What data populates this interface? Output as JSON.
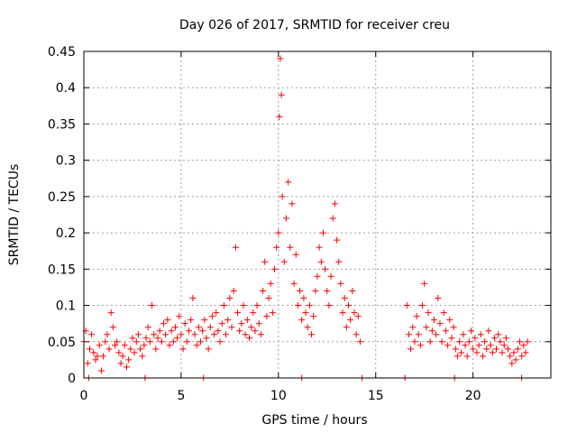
{
  "chart_data": {
    "type": "scatter",
    "title": "Day 026 of 2017, SRMTID for receiver creu",
    "xlabel": "GPS time / hours",
    "ylabel": "SRMTID / TECUs",
    "xlim": [
      0,
      24
    ],
    "ylim": [
      0,
      0.45
    ],
    "xticks": [
      0,
      5,
      10,
      15,
      20
    ],
    "xtick_labels": [
      "0",
      "5",
      "10",
      "15",
      "20"
    ],
    "yticks": [
      0,
      0.05,
      0.1,
      0.15,
      0.2,
      0.25,
      0.3,
      0.35,
      0.4,
      0.45
    ],
    "ytick_labels": [
      "0",
      "0.05",
      "0.1",
      "0.15",
      "0.2",
      "0.25",
      "0.3",
      "0.35",
      "0.4",
      "0.45"
    ],
    "grid": true,
    "marker": "+",
    "marker_color": "#ff0000",
    "series": [
      {
        "name": "SRMTID",
        "points": [
          [
            0.0,
            0.05
          ],
          [
            0.1,
            0.065
          ],
          [
            0.2,
            0.02
          ],
          [
            0.3,
            0.04
          ],
          [
            0.4,
            0.06
          ],
          [
            0.5,
            0.035
          ],
          [
            0.6,
            0.025
          ],
          [
            0.7,
            0.03
          ],
          [
            0.8,
            0.045
          ],
          [
            0.9,
            0.01
          ],
          [
            1.0,
            0.03
          ],
          [
            1.1,
            0.05
          ],
          [
            1.2,
            0.06
          ],
          [
            1.3,
            0.04
          ],
          [
            1.4,
            0.09
          ],
          [
            1.5,
            0.07
          ],
          [
            1.6,
            0.045
          ],
          [
            1.7,
            0.05
          ],
          [
            1.8,
            0.035
          ],
          [
            1.9,
            0.02
          ],
          [
            2.0,
            0.03
          ],
          [
            2.1,
            0.045
          ],
          [
            2.2,
            0.015
          ],
          [
            2.3,
            0.025
          ],
          [
            2.4,
            0.04
          ],
          [
            2.5,
            0.055
          ],
          [
            2.6,
            0.035
          ],
          [
            2.7,
            0.05
          ],
          [
            2.8,
            0.06
          ],
          [
            2.9,
            0.04
          ],
          [
            3.0,
            0.03
          ],
          [
            3.1,
            0.045
          ],
          [
            3.2,
            0.055
          ],
          [
            3.3,
            0.07
          ],
          [
            3.4,
            0.05
          ],
          [
            3.5,
            0.1
          ],
          [
            3.6,
            0.06
          ],
          [
            3.7,
            0.04
          ],
          [
            3.8,
            0.055
          ],
          [
            3.9,
            0.065
          ],
          [
            4.0,
            0.05
          ],
          [
            4.1,
            0.075
          ],
          [
            4.2,
            0.06
          ],
          [
            4.3,
            0.08
          ],
          [
            4.4,
            0.045
          ],
          [
            4.5,
            0.065
          ],
          [
            4.6,
            0.05
          ],
          [
            4.7,
            0.07
          ],
          [
            4.8,
            0.055
          ],
          [
            4.9,
            0.085
          ],
          [
            5.0,
            0.06
          ],
          [
            5.1,
            0.04
          ],
          [
            5.2,
            0.075
          ],
          [
            5.3,
            0.05
          ],
          [
            5.4,
            0.065
          ],
          [
            5.5,
            0.08
          ],
          [
            5.6,
            0.11
          ],
          [
            5.7,
            0.06
          ],
          [
            5.8,
            0.045
          ],
          [
            5.9,
            0.07
          ],
          [
            6.0,
            0.05
          ],
          [
            6.1,
            0.065
          ],
          [
            6.2,
            0.08
          ],
          [
            6.3,
            0.055
          ],
          [
            6.4,
            0.04
          ],
          [
            6.5,
            0.07
          ],
          [
            6.6,
            0.085
          ],
          [
            6.7,
            0.06
          ],
          [
            6.8,
            0.09
          ],
          [
            6.9,
            0.065
          ],
          [
            7.0,
            0.05
          ],
          [
            7.1,
            0.075
          ],
          [
            7.2,
            0.1
          ],
          [
            7.3,
            0.06
          ],
          [
            7.4,
            0.08
          ],
          [
            7.5,
            0.11
          ],
          [
            7.6,
            0.07
          ],
          [
            7.7,
            0.12
          ],
          [
            7.8,
            0.18
          ],
          [
            7.9,
            0.09
          ],
          [
            8.0,
            0.065
          ],
          [
            8.1,
            0.075
          ],
          [
            8.2,
            0.1
          ],
          [
            8.3,
            0.06
          ],
          [
            8.4,
            0.08
          ],
          [
            8.5,
            0.055
          ],
          [
            8.6,
            0.07
          ],
          [
            8.7,
            0.09
          ],
          [
            8.8,
            0.065
          ],
          [
            8.9,
            0.1
          ],
          [
            9.0,
            0.075
          ],
          [
            9.1,
            0.06
          ],
          [
            9.2,
            0.12
          ],
          [
            9.3,
            0.16
          ],
          [
            9.4,
            0.085
          ],
          [
            9.5,
            0.11
          ],
          [
            9.6,
            0.13
          ],
          [
            9.7,
            0.09
          ],
          [
            9.8,
            0.15
          ],
          [
            9.9,
            0.18
          ],
          [
            10.0,
            0.2
          ],
          [
            10.05,
            0.36
          ],
          [
            10.1,
            0.44
          ],
          [
            10.15,
            0.39
          ],
          [
            10.2,
            0.25
          ],
          [
            10.3,
            0.16
          ],
          [
            10.4,
            0.22
          ],
          [
            10.5,
            0.27
          ],
          [
            10.6,
            0.18
          ],
          [
            10.7,
            0.24
          ],
          [
            10.8,
            0.13
          ],
          [
            10.9,
            0.17
          ],
          [
            11.0,
            0.1
          ],
          [
            11.1,
            0.12
          ],
          [
            11.2,
            0.08
          ],
          [
            11.3,
            0.11
          ],
          [
            11.4,
            0.09
          ],
          [
            11.5,
            0.07
          ],
          [
            11.6,
            0.1
          ],
          [
            11.7,
            0.06
          ],
          [
            11.8,
            0.085
          ],
          [
            11.9,
            0.12
          ],
          [
            12.0,
            0.14
          ],
          [
            12.1,
            0.18
          ],
          [
            12.2,
            0.16
          ],
          [
            12.3,
            0.2
          ],
          [
            12.4,
            0.15
          ],
          [
            12.5,
            0.12
          ],
          [
            12.6,
            0.1
          ],
          [
            12.7,
            0.14
          ],
          [
            12.8,
            0.22
          ],
          [
            12.9,
            0.24
          ],
          [
            13.0,
            0.19
          ],
          [
            13.1,
            0.16
          ],
          [
            13.2,
            0.13
          ],
          [
            13.3,
            0.09
          ],
          [
            13.4,
            0.11
          ],
          [
            13.5,
            0.07
          ],
          [
            13.6,
            0.1
          ],
          [
            13.7,
            0.08
          ],
          [
            13.8,
            0.12
          ],
          [
            13.9,
            0.09
          ],
          [
            14.0,
            0.06
          ],
          [
            14.1,
            0.085
          ],
          [
            14.2,
            0.05
          ],
          [
            16.6,
            0.1
          ],
          [
            16.7,
            0.06
          ],
          [
            16.8,
            0.04
          ],
          [
            16.9,
            0.07
          ],
          [
            17.0,
            0.05
          ],
          [
            17.1,
            0.085
          ],
          [
            17.2,
            0.06
          ],
          [
            17.3,
            0.045
          ],
          [
            17.4,
            0.1
          ],
          [
            17.5,
            0.13
          ],
          [
            17.6,
            0.07
          ],
          [
            17.7,
            0.09
          ],
          [
            17.8,
            0.05
          ],
          [
            17.9,
            0.065
          ],
          [
            18.0,
            0.08
          ],
          [
            18.1,
            0.06
          ],
          [
            18.2,
            0.11
          ],
          [
            18.3,
            0.075
          ],
          [
            18.4,
            0.05
          ],
          [
            18.5,
            0.09
          ],
          [
            18.6,
            0.065
          ],
          [
            18.7,
            0.045
          ],
          [
            18.8,
            0.08
          ],
          [
            18.9,
            0.055
          ],
          [
            19.0,
            0.07
          ],
          [
            19.1,
            0.04
          ],
          [
            19.2,
            0.03
          ],
          [
            19.3,
            0.05
          ],
          [
            19.4,
            0.035
          ],
          [
            19.5,
            0.06
          ],
          [
            19.6,
            0.045
          ],
          [
            19.7,
            0.03
          ],
          [
            19.8,
            0.05
          ],
          [
            19.9,
            0.065
          ],
          [
            20.0,
            0.04
          ],
          [
            20.1,
            0.055
          ],
          [
            20.2,
            0.035
          ],
          [
            20.3,
            0.045
          ],
          [
            20.4,
            0.06
          ],
          [
            20.5,
            0.03
          ],
          [
            20.6,
            0.05
          ],
          [
            20.7,
            0.04
          ],
          [
            20.8,
            0.065
          ],
          [
            20.9,
            0.045
          ],
          [
            21.0,
            0.035
          ],
          [
            21.1,
            0.055
          ],
          [
            21.2,
            0.04
          ],
          [
            21.3,
            0.06
          ],
          [
            21.4,
            0.05
          ],
          [
            21.5,
            0.035
          ],
          [
            21.6,
            0.045
          ],
          [
            21.7,
            0.055
          ],
          [
            21.8,
            0.04
          ],
          [
            21.9,
            0.03
          ],
          [
            22.0,
            0.02
          ],
          [
            22.1,
            0.035
          ],
          [
            22.2,
            0.025
          ],
          [
            22.3,
            0.04
          ],
          [
            22.4,
            0.05
          ],
          [
            22.5,
            0.03
          ],
          [
            22.6,
            0.045
          ],
          [
            22.7,
            0.035
          ],
          [
            22.8,
            0.05
          ],
          [
            0.25,
            0.0
          ],
          [
            3.15,
            0.0
          ],
          [
            6.15,
            0.0
          ],
          [
            11.2,
            0.0
          ],
          [
            14.3,
            0.0
          ],
          [
            16.5,
            0.0
          ],
          [
            19.05,
            0.0
          ],
          [
            22.5,
            0.0
          ]
        ]
      }
    ]
  }
}
